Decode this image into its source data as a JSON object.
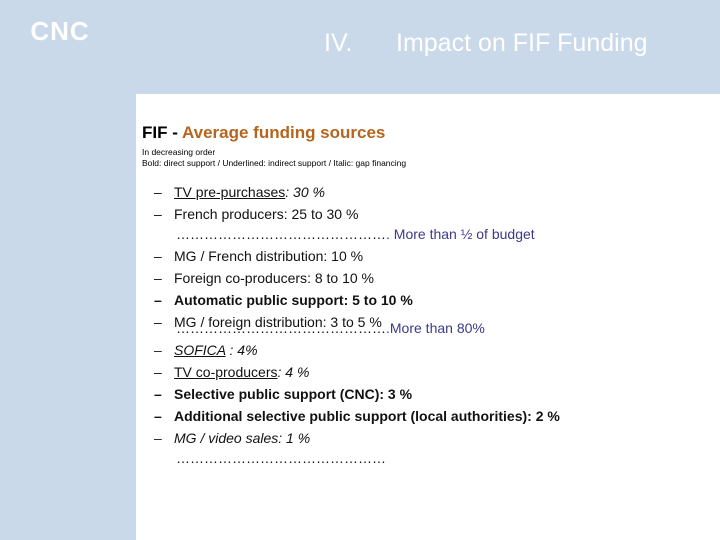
{
  "header": {
    "logo_text": "CNC",
    "section_number": "IV.",
    "title": "Impact on FIF Funding"
  },
  "panel": {
    "heading_prefix": "FIF - ",
    "heading_main": "Average funding sources",
    "subtitle_1": "In decreasing order",
    "subtitle_2": "Bold: direct support / Underlined: indirect support / Italic: gap financing",
    "dash": "–",
    "items": [
      {
        "name": "TV pre-purchases",
        "value": ": 30 %"
      },
      {
        "name": "French producers",
        "value": ": 25 to 30 %"
      },
      {
        "dots": "………………………………………",
        "note": ". More than ½ of budget"
      },
      {
        "name": "MG / French distribution",
        "value": ": 10 %"
      },
      {
        "name": "Foreign co-producers",
        "value": ": 8 to 10 %"
      },
      {
        "name": "Automatic public support",
        "value": ": 5 to 10 %"
      },
      {
        "name": "MG / foreign distribution",
        "value": ": 3 to 5 %"
      },
      {
        "dots": "………………………………………",
        "note": ".More than 80%"
      },
      {
        "name": "SOFICA",
        "value": " : 4%"
      },
      {
        "name": "TV co-producers",
        "value": ": 4 %"
      },
      {
        "name": "Selective public support (CNC)",
        "value": ": 3 %"
      },
      {
        "name": "Additional selective public support (local authorities)",
        "value": ": 2 %"
      },
      {
        "name": "MG / video sales",
        "value": ": 1 %"
      },
      {
        "dots": "………………………………………"
      }
    ]
  }
}
